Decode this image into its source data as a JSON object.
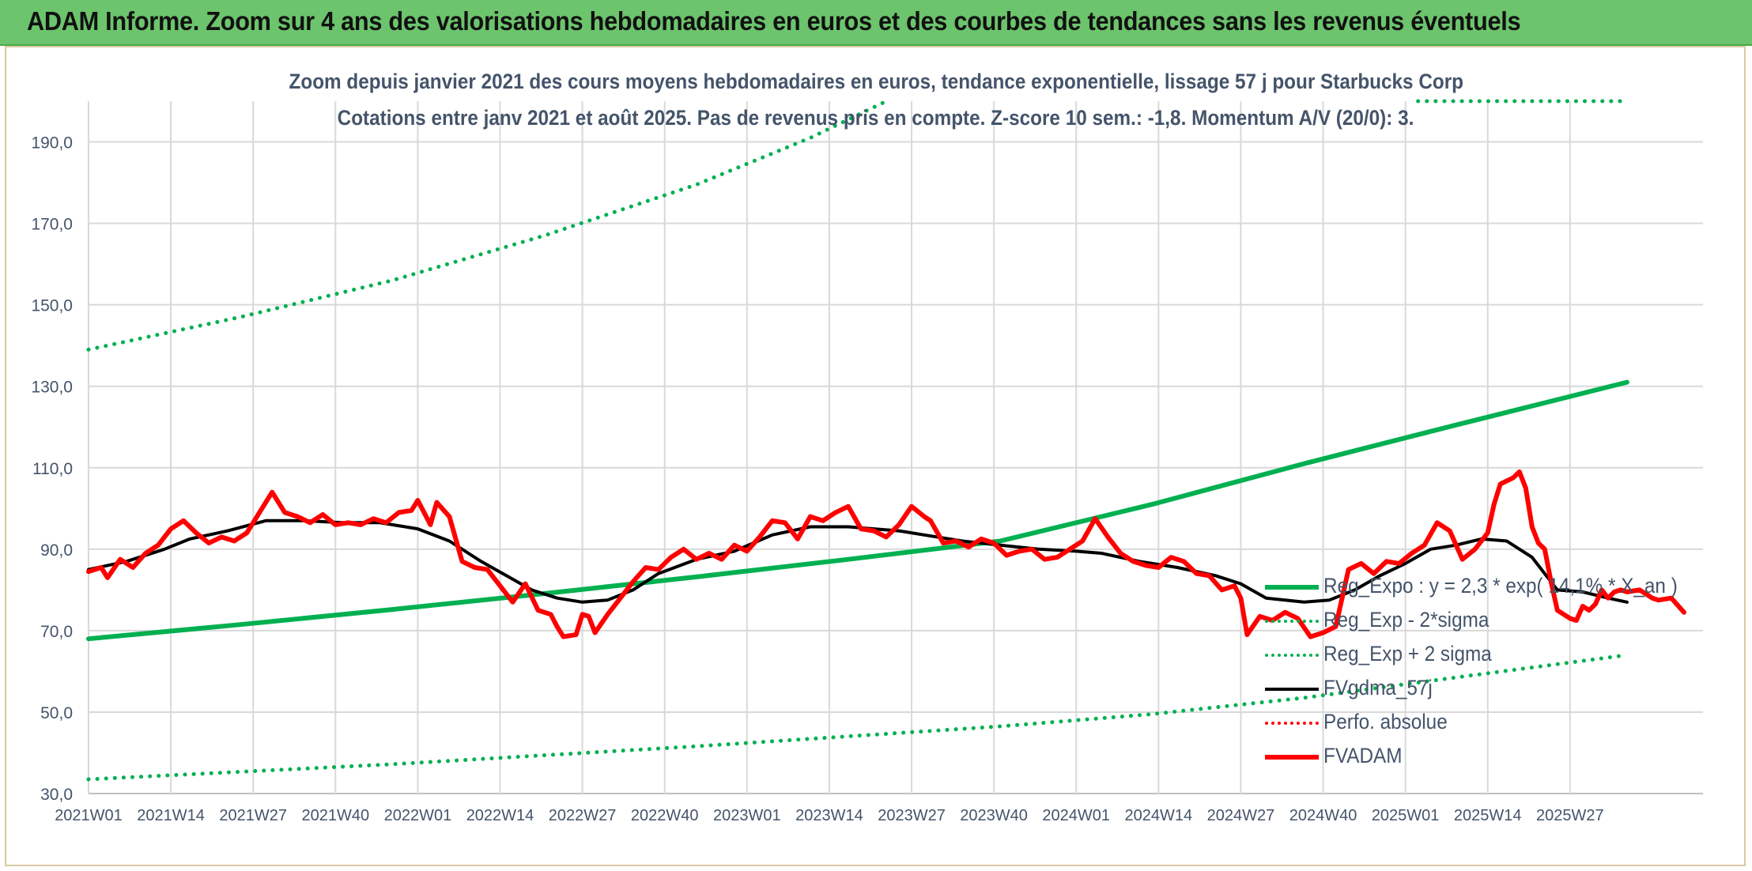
{
  "header": {
    "title": "ADAM Informe. Zoom sur 4 ans des valorisations hebdomadaires en euros et des courbes de tendances sans les revenus éventuels"
  },
  "chart_data": {
    "type": "line",
    "title": "Zoom depuis janvier 2021 des cours moyens hebdomadaires en euros, tendance exponentielle, lissage 57 j pour Starbucks Corp",
    "subtitle": "Cotations entre janv 2021 et août 2025. Pas de revenus pris en compte. Z-score 10 sem.: -1,8. Momentum A/V (20/0): 3.",
    "xlabel": "",
    "ylabel": "",
    "ylim": [
      30,
      200
    ],
    "yticks": [
      "30,0",
      "50,0",
      "70,0",
      "90,0",
      "110,0",
      "130,0",
      "150,0",
      "170,0",
      "190,0"
    ],
    "grid": true,
    "legend_position": "bottom-right",
    "x_categories": [
      "2021W01",
      "2021W14",
      "2021W27",
      "2021W40",
      "2022W01",
      "2022W14",
      "2022W27",
      "2022W40",
      "2023W01",
      "2023W14",
      "2023W27",
      "2023W40",
      "2024W01",
      "2024W14",
      "2024W27",
      "2024W40",
      "2025W01",
      "2025W14",
      "2025W27"
    ],
    "x_range_weeks": [
      0,
      243
    ],
    "series": [
      {
        "name": "Reg_Expo : y = 2,3 * exp( 14,1% * X_an )",
        "style": "solid",
        "color": "#00b050",
        "width": 6,
        "points": [
          [
            0,
            68.0
          ],
          [
            24,
            71.5
          ],
          [
            48,
            75.2
          ],
          [
            72,
            79.1
          ],
          [
            96,
            83.2
          ],
          [
            120,
            87.5
          ],
          [
            144,
            92.0
          ],
          [
            168,
            101.0
          ],
          [
            192,
            111.0
          ],
          [
            216,
            120.5
          ],
          [
            243,
            131.0
          ]
        ]
      },
      {
        "name": "Reg_Exp - 2*sigma",
        "style": "dotted",
        "color": "#00b050",
        "width": 5,
        "points": [
          [
            0,
            33.5
          ],
          [
            48,
            37.2
          ],
          [
            96,
            41.6
          ],
          [
            144,
            46.5
          ],
          [
            168,
            49.5
          ],
          [
            192,
            53.5
          ],
          [
            216,
            58.5
          ],
          [
            243,
            64.0
          ]
        ]
      },
      {
        "name": "Reg_Exp + 2 sigma",
        "style": "dotted",
        "color": "#00b050",
        "width": 5,
        "points": [
          [
            0,
            139.0
          ],
          [
            24,
            147.0
          ],
          [
            48,
            156.0
          ],
          [
            72,
            167.0
          ],
          [
            96,
            179.5
          ],
          [
            114,
            191.0
          ],
          [
            126,
            200.0
          ]
        ],
        "legend_tail": [
          [
            210,
            200
          ],
          [
            243,
            200
          ]
        ]
      },
      {
        "name": "FVgdma_57j",
        "style": "solid",
        "color": "#000000",
        "width": 4,
        "points": [
          [
            0,
            85.0
          ],
          [
            6,
            87.0
          ],
          [
            12,
            90.0
          ],
          [
            16,
            92.5
          ],
          [
            22,
            94.5
          ],
          [
            28,
            97.0
          ],
          [
            34,
            97.0
          ],
          [
            40,
            96.5
          ],
          [
            46,
            96.5
          ],
          [
            52,
            95.0
          ],
          [
            57,
            92.0
          ],
          [
            62,
            87.0
          ],
          [
            66,
            83.5
          ],
          [
            70,
            80.0
          ],
          [
            74,
            78.0
          ],
          [
            78,
            77.0
          ],
          [
            82,
            77.5
          ],
          [
            86,
            80.0
          ],
          [
            90,
            84.0
          ],
          [
            96,
            87.5
          ],
          [
            102,
            89.5
          ],
          [
            108,
            93.5
          ],
          [
            114,
            95.5
          ],
          [
            120,
            95.5
          ],
          [
            124,
            95.0
          ],
          [
            128,
            94.5
          ],
          [
            132,
            93.5
          ],
          [
            138,
            92.0
          ],
          [
            144,
            91.0
          ],
          [
            150,
            90.0
          ],
          [
            156,
            89.5
          ],
          [
            160,
            89.0
          ],
          [
            166,
            87.0
          ],
          [
            172,
            85.5
          ],
          [
            178,
            83.5
          ],
          [
            182,
            81.5
          ],
          [
            186,
            78.0
          ],
          [
            192,
            77.0
          ],
          [
            196,
            77.5
          ],
          [
            200,
            80.0
          ],
          [
            204,
            83.5
          ],
          [
            208,
            86.5
          ],
          [
            212,
            90.0
          ],
          [
            216,
            91.0
          ],
          [
            220,
            92.5
          ],
          [
            224,
            92.0
          ],
          [
            228,
            88.0
          ],
          [
            232,
            80.0
          ],
          [
            236,
            79.5
          ],
          [
            240,
            78.0
          ],
          [
            243,
            77.0
          ]
        ]
      },
      {
        "name": "Perfo. absolue",
        "style": "dotted",
        "color": "#ff0000",
        "width": 4,
        "points": []
      },
      {
        "name": "FVADAM",
        "style": "solid",
        "color": "#ff0000",
        "width": 6,
        "points": [
          [
            0,
            84.5
          ],
          [
            2,
            85.5
          ],
          [
            3,
            83.0
          ],
          [
            5,
            87.5
          ],
          [
            7,
            85.5
          ],
          [
            9,
            89.0
          ],
          [
            11,
            91.0
          ],
          [
            13,
            95.0
          ],
          [
            15,
            97.0
          ],
          [
            17,
            94.0
          ],
          [
            19,
            91.5
          ],
          [
            21,
            93.0
          ],
          [
            23,
            92.0
          ],
          [
            25,
            94.0
          ],
          [
            27,
            99.0
          ],
          [
            29,
            104.0
          ],
          [
            31,
            99.0
          ],
          [
            33,
            98.0
          ],
          [
            35,
            96.5
          ],
          [
            37,
            98.5
          ],
          [
            39,
            96.0
          ],
          [
            41,
            96.5
          ],
          [
            43,
            96.0
          ],
          [
            45,
            97.5
          ],
          [
            47,
            96.5
          ],
          [
            49,
            99.0
          ],
          [
            51,
            99.5
          ],
          [
            52,
            102.0
          ],
          [
            54,
            96.0
          ],
          [
            55,
            101.5
          ],
          [
            57,
            98.0
          ],
          [
            59,
            87.0
          ],
          [
            61,
            85.5
          ],
          [
            63,
            85.0
          ],
          [
            65,
            81.0
          ],
          [
            67,
            77.0
          ],
          [
            69,
            81.5
          ],
          [
            71,
            75.0
          ],
          [
            73,
            74.0
          ],
          [
            74,
            71.0
          ],
          [
            75,
            68.5
          ],
          [
            77,
            69.0
          ],
          [
            78,
            74.0
          ],
          [
            79,
            73.5
          ],
          [
            80,
            69.5
          ],
          [
            82,
            74.0
          ],
          [
            84,
            78.0
          ],
          [
            86,
            82.0
          ],
          [
            88,
            85.5
          ],
          [
            90,
            85.0
          ],
          [
            92,
            88.0
          ],
          [
            94,
            90.0
          ],
          [
            96,
            87.5
          ],
          [
            98,
            89.0
          ],
          [
            100,
            87.5
          ],
          [
            102,
            91.0
          ],
          [
            104,
            89.5
          ],
          [
            106,
            93.0
          ],
          [
            108,
            97.0
          ],
          [
            110,
            96.5
          ],
          [
            112,
            92.5
          ],
          [
            114,
            98.0
          ],
          [
            116,
            97.0
          ],
          [
            118,
            99.0
          ],
          [
            120,
            100.5
          ],
          [
            122,
            95.0
          ],
          [
            124,
            94.5
          ],
          [
            126,
            93.0
          ],
          [
            128,
            96.0
          ],
          [
            130,
            100.5
          ],
          [
            132,
            98.0
          ],
          [
            133,
            97.0
          ],
          [
            135,
            91.5
          ],
          [
            137,
            92.0
          ],
          [
            139,
            90.5
          ],
          [
            141,
            92.5
          ],
          [
            143,
            91.5
          ],
          [
            145,
            88.5
          ],
          [
            147,
            89.5
          ],
          [
            149,
            90.0
          ],
          [
            151,
            87.5
          ],
          [
            153,
            88.0
          ],
          [
            155,
            90.0
          ],
          [
            157,
            92.0
          ],
          [
            159,
            97.5
          ],
          [
            161,
            93.0
          ],
          [
            163,
            89.0
          ],
          [
            165,
            87.0
          ],
          [
            167,
            86.0
          ],
          [
            169,
            85.5
          ],
          [
            171,
            88.0
          ],
          [
            173,
            87.0
          ],
          [
            175,
            84.0
          ],
          [
            177,
            83.5
          ],
          [
            179,
            80.0
          ],
          [
            181,
            81.0
          ],
          [
            182,
            78.0
          ],
          [
            183,
            69.0
          ],
          [
            185,
            73.5
          ],
          [
            187,
            72.5
          ],
          [
            189,
            74.5
          ],
          [
            191,
            73.0
          ],
          [
            193,
            68.5
          ],
          [
            195,
            69.5
          ],
          [
            197,
            71.0
          ],
          [
            199,
            85.0
          ],
          [
            201,
            86.5
          ],
          [
            203,
            84.0
          ],
          [
            205,
            87.0
          ],
          [
            207,
            86.5
          ],
          [
            209,
            89.0
          ],
          [
            211,
            91.0
          ],
          [
            213,
            96.5
          ],
          [
            215,
            94.5
          ],
          [
            217,
            87.5
          ],
          [
            219,
            90.0
          ],
          [
            221,
            94.0
          ],
          [
            222,
            101.0
          ],
          [
            223,
            106.0
          ],
          [
            225,
            107.5
          ],
          [
            226,
            109.0
          ],
          [
            227,
            105.0
          ],
          [
            228,
            95.5
          ],
          [
            229,
            91.5
          ],
          [
            230,
            90.0
          ],
          [
            231,
            82.0
          ],
          [
            232,
            75.0
          ],
          [
            234,
            73.0
          ],
          [
            235,
            72.5
          ],
          [
            236,
            76.0
          ],
          [
            237,
            75.0
          ],
          [
            238,
            76.5
          ],
          [
            239,
            80.0
          ],
          [
            240,
            78.0
          ],
          [
            241,
            79.5
          ],
          [
            242,
            80.0
          ],
          [
            243,
            79.5
          ],
          [
            245,
            80.0
          ],
          [
            247,
            78.0
          ],
          [
            248,
            77.5
          ],
          [
            250,
            78.0
          ],
          [
            252,
            74.5
          ]
        ]
      }
    ]
  }
}
